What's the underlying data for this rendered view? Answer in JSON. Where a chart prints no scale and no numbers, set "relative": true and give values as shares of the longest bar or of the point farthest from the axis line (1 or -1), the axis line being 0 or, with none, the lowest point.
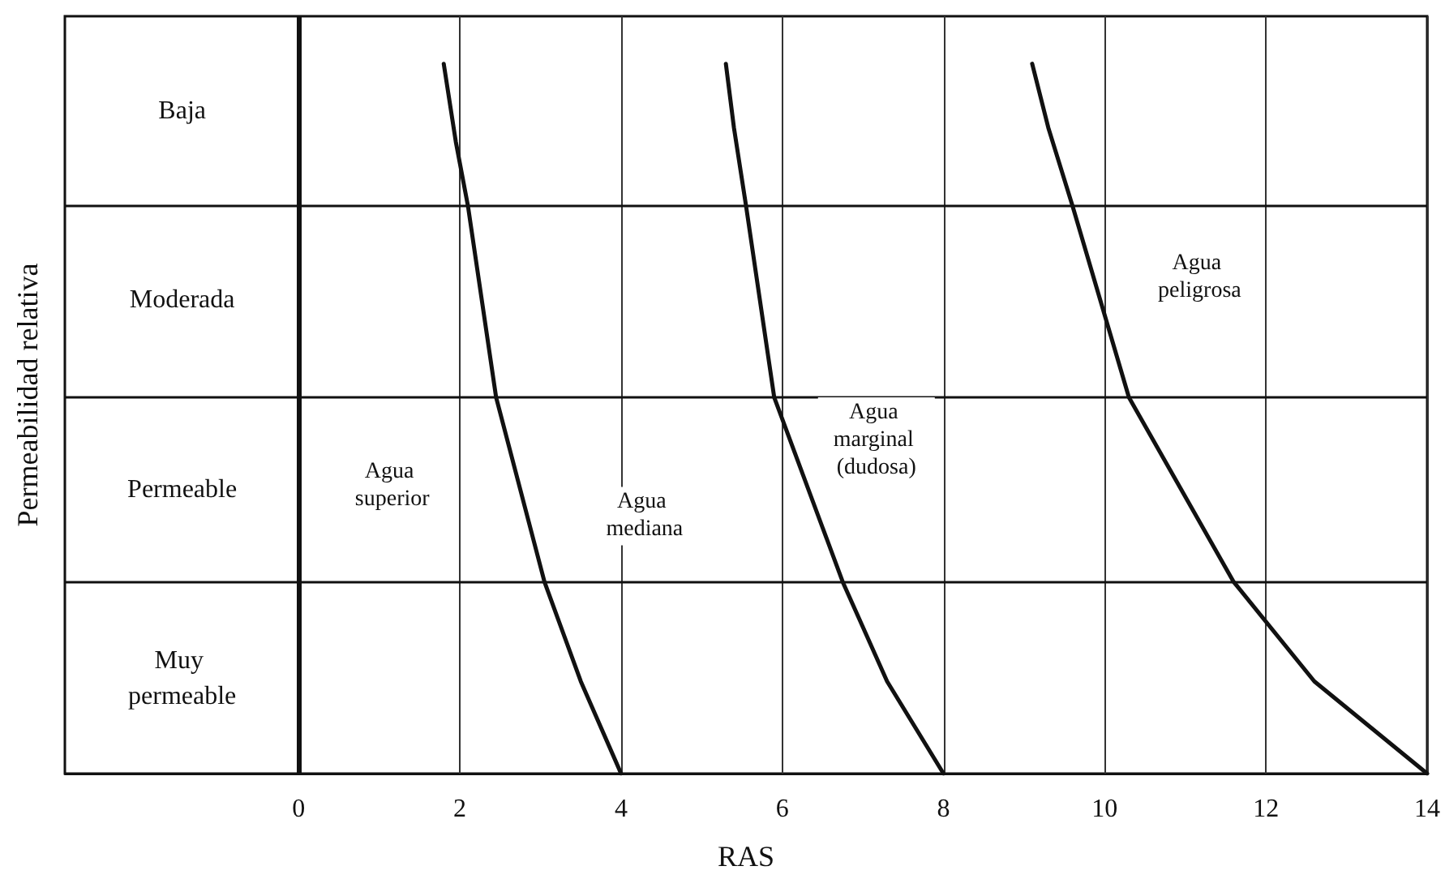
{
  "chart_data": {
    "type": "line",
    "xlabel": "RAS",
    "ylabel": "Permeabilidad relativa",
    "relative": true,
    "xlim": [
      -2.9,
      14
    ],
    "xticks": [
      0,
      2,
      4,
      6,
      8,
      10,
      12,
      14
    ],
    "grid": "x",
    "marker": "none",
    "line_style": "solid",
    "series": [
      {
        "color": "#111111",
        "x": [
          1.8,
          1.95,
          2.1,
          2.45,
          3.05,
          3.5,
          4
        ],
        "values": [
          1,
          0.89,
          0.8,
          0.53,
          0.27,
          0.13,
          0
        ]
      },
      {
        "color": "#111111",
        "x": [
          5.3,
          5.4,
          5.55,
          5.9,
          6.75,
          7.3,
          8
        ],
        "values": [
          1,
          0.91,
          0.8,
          0.53,
          0.27,
          0.13,
          0
        ]
      },
      {
        "color": "#111111",
        "x": [
          9.1,
          9.3,
          9.6,
          10.3,
          11.6,
          12.6,
          14
        ],
        "values": [
          1,
          0.91,
          0.8,
          0.53,
          0.27,
          0.13,
          0
        ]
      }
    ],
    "ref_lines": [
      {
        "axis": "y",
        "value": 0.27,
        "color": "#111111"
      },
      {
        "axis": "y",
        "value": 0.53,
        "color": "#111111"
      },
      {
        "axis": "y",
        "value": 0.8,
        "color": "#111111"
      },
      {
        "axis": "x",
        "value": 0,
        "color": "#111111"
      }
    ],
    "annotations": [
      "Baja",
      "Moderada",
      "Permeable",
      "Muy permeable",
      "Agua superior",
      "Agua mediana",
      "Agua marginal (dudosa)",
      "Agua peligrosa"
    ]
  }
}
